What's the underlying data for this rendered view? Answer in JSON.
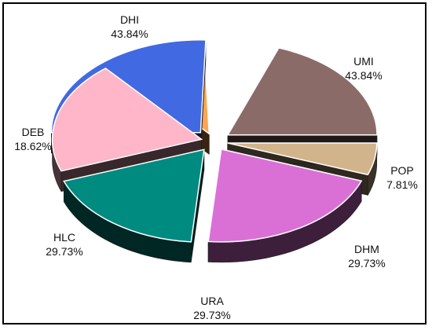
{
  "chart_data": {
    "type": "pie",
    "style": "3d-exploded",
    "title": "",
    "slices": [
      {
        "name": "DHI",
        "value": 43.84,
        "label": "43.84%",
        "color": "#4169e1"
      },
      {
        "name": "UMI",
        "value": 43.84,
        "label": "43.84%",
        "color": "#8b6b68"
      },
      {
        "name": "POP",
        "value": 7.81,
        "label": "7.81%",
        "color": "#d2b48c"
      },
      {
        "name": "DHM",
        "value": 29.73,
        "label": "29.73%",
        "color": "#da70d6"
      },
      {
        "name": "URA",
        "value": 29.73,
        "label": "29.73%",
        "color": "#008b80"
      },
      {
        "name": "HLC",
        "value": 29.73,
        "label": "29.73%",
        "color": "#ffb6c8"
      },
      {
        "name": "DEB",
        "value": 18.62,
        "label": "18.62%",
        "color": "#ffa54f"
      }
    ]
  }
}
